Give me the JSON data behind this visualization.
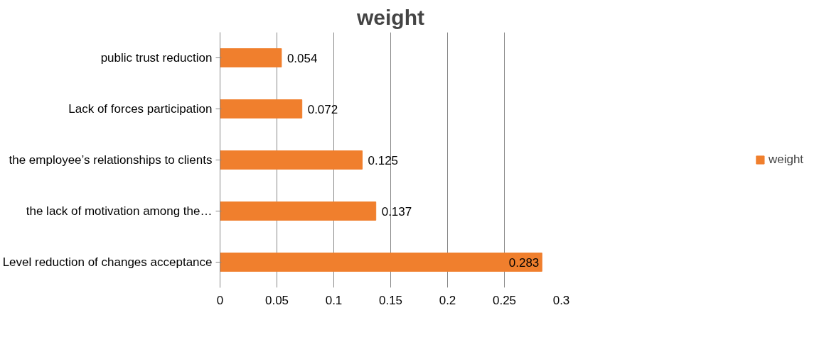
{
  "chart_data": {
    "type": "bar",
    "title": "weight",
    "orientation": "horizontal",
    "categories": [
      "public trust reduction",
      "Lack of forces participation",
      "the employee’s relationships to clients",
      "the lack of motivation among the…",
      "Level reduction of changes acceptance"
    ],
    "series": [
      {
        "name": "weight",
        "color": "#f07f2d",
        "values": [
          0.054,
          0.072,
          0.125,
          0.137,
          0.283
        ]
      }
    ],
    "xlim": [
      0,
      0.3
    ],
    "xticks": [
      0,
      0.05,
      0.1,
      0.15,
      0.2,
      0.25,
      0.3
    ],
    "grid": "x",
    "legend": "right",
    "data_labels": true
  }
}
